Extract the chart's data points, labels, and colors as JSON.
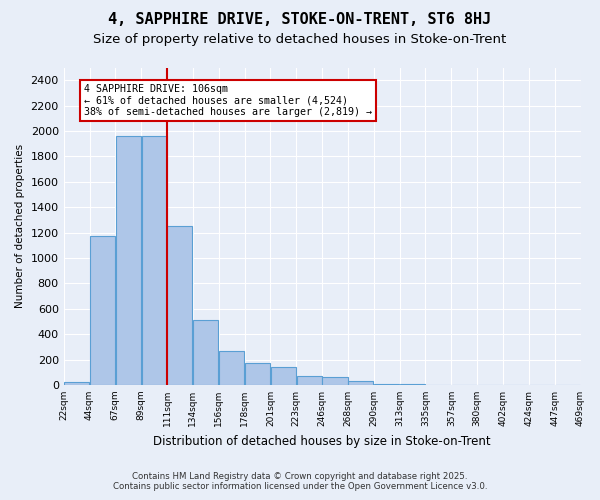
{
  "title": "4, SAPPHIRE DRIVE, STOKE-ON-TRENT, ST6 8HJ",
  "subtitle": "Size of property relative to detached houses in Stoke-on-Trent",
  "xlabel": "Distribution of detached houses by size in Stoke-on-Trent",
  "ylabel": "Number of detached properties",
  "bin_labels": [
    "22sqm",
    "44sqm",
    "67sqm",
    "89sqm",
    "111sqm",
    "134sqm",
    "156sqm",
    "178sqm",
    "201sqm",
    "223sqm",
    "246sqm",
    "268sqm",
    "290sqm",
    "313sqm",
    "335sqm",
    "357sqm",
    "380sqm",
    "402sqm",
    "424sqm",
    "447sqm",
    "469sqm"
  ],
  "bar_values": [
    20,
    1170,
    1960,
    1960,
    1250,
    510,
    270,
    175,
    140,
    70,
    60,
    30,
    10,
    5,
    3,
    2,
    1,
    1,
    1,
    1
  ],
  "bar_color": "#aec6e8",
  "bar_edge_color": "#5a9fd4",
  "red_line_index": 4,
  "annotation_line1": "4 SAPPHIRE DRIVE: 106sqm",
  "annotation_line2": "← 61% of detached houses are smaller (4,524)",
  "annotation_line3": "38% of semi-detached houses are larger (2,819) →",
  "annotation_box_color": "#ffffff",
  "annotation_box_edge": "#cc0000",
  "ylim": [
    0,
    2500
  ],
  "yticks": [
    0,
    200,
    400,
    600,
    800,
    1000,
    1200,
    1400,
    1600,
    1800,
    2000,
    2200,
    2400
  ],
  "footer_line1": "Contains HM Land Registry data © Crown copyright and database right 2025.",
  "footer_line2": "Contains public sector information licensed under the Open Government Licence v3.0.",
  "bg_color": "#e8eef8",
  "plot_bg_color": "#e8eef8",
  "title_fontsize": 11,
  "subtitle_fontsize": 9.5,
  "red_line_color": "#cc0000",
  "grid_color": "#ffffff"
}
